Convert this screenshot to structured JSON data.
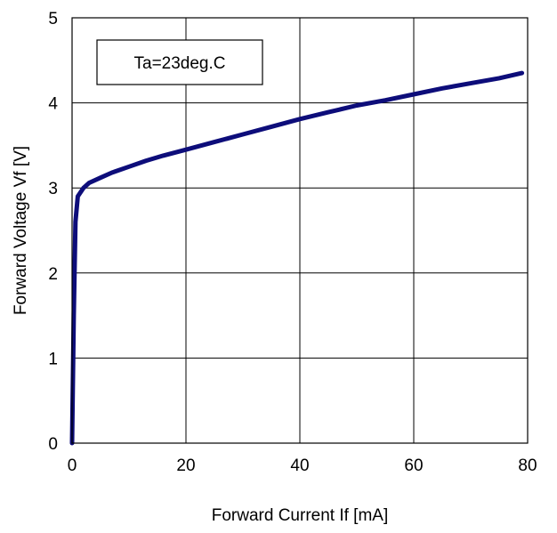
{
  "chart_data": {
    "type": "line",
    "title": "",
    "xlabel": "Forward Current If [mA]",
    "ylabel": "Forward Voltage Vf [V]",
    "xlim": [
      0,
      80
    ],
    "ylim": [
      0,
      5
    ],
    "x_ticks": [
      0,
      20,
      40,
      60,
      80
    ],
    "y_ticks": [
      0,
      1,
      2,
      3,
      4,
      5
    ],
    "x_tick_labels": [
      "0",
      "20",
      "40",
      "60",
      "80"
    ],
    "y_tick_labels": [
      "0",
      "1",
      "2",
      "3",
      "4",
      "5"
    ],
    "grid": true,
    "legend": "none",
    "annotation": "Ta=23deg.C",
    "annotation_placement": "top-left",
    "series": [
      {
        "color": "#0d0d7a",
        "x": [
          0.0,
          0.3,
          0.6,
          1,
          2,
          3,
          5,
          7,
          10,
          13,
          16,
          20,
          25,
          30,
          35,
          40,
          45,
          50,
          55,
          60,
          65,
          70,
          75,
          79
        ],
        "y": [
          0.0,
          1.5,
          2.6,
          2.9,
          3.0,
          3.06,
          3.12,
          3.18,
          3.25,
          3.32,
          3.38,
          3.45,
          3.54,
          3.63,
          3.72,
          3.81,
          3.89,
          3.97,
          4.03,
          4.1,
          4.17,
          4.23,
          4.29,
          4.35
        ]
      }
    ]
  }
}
